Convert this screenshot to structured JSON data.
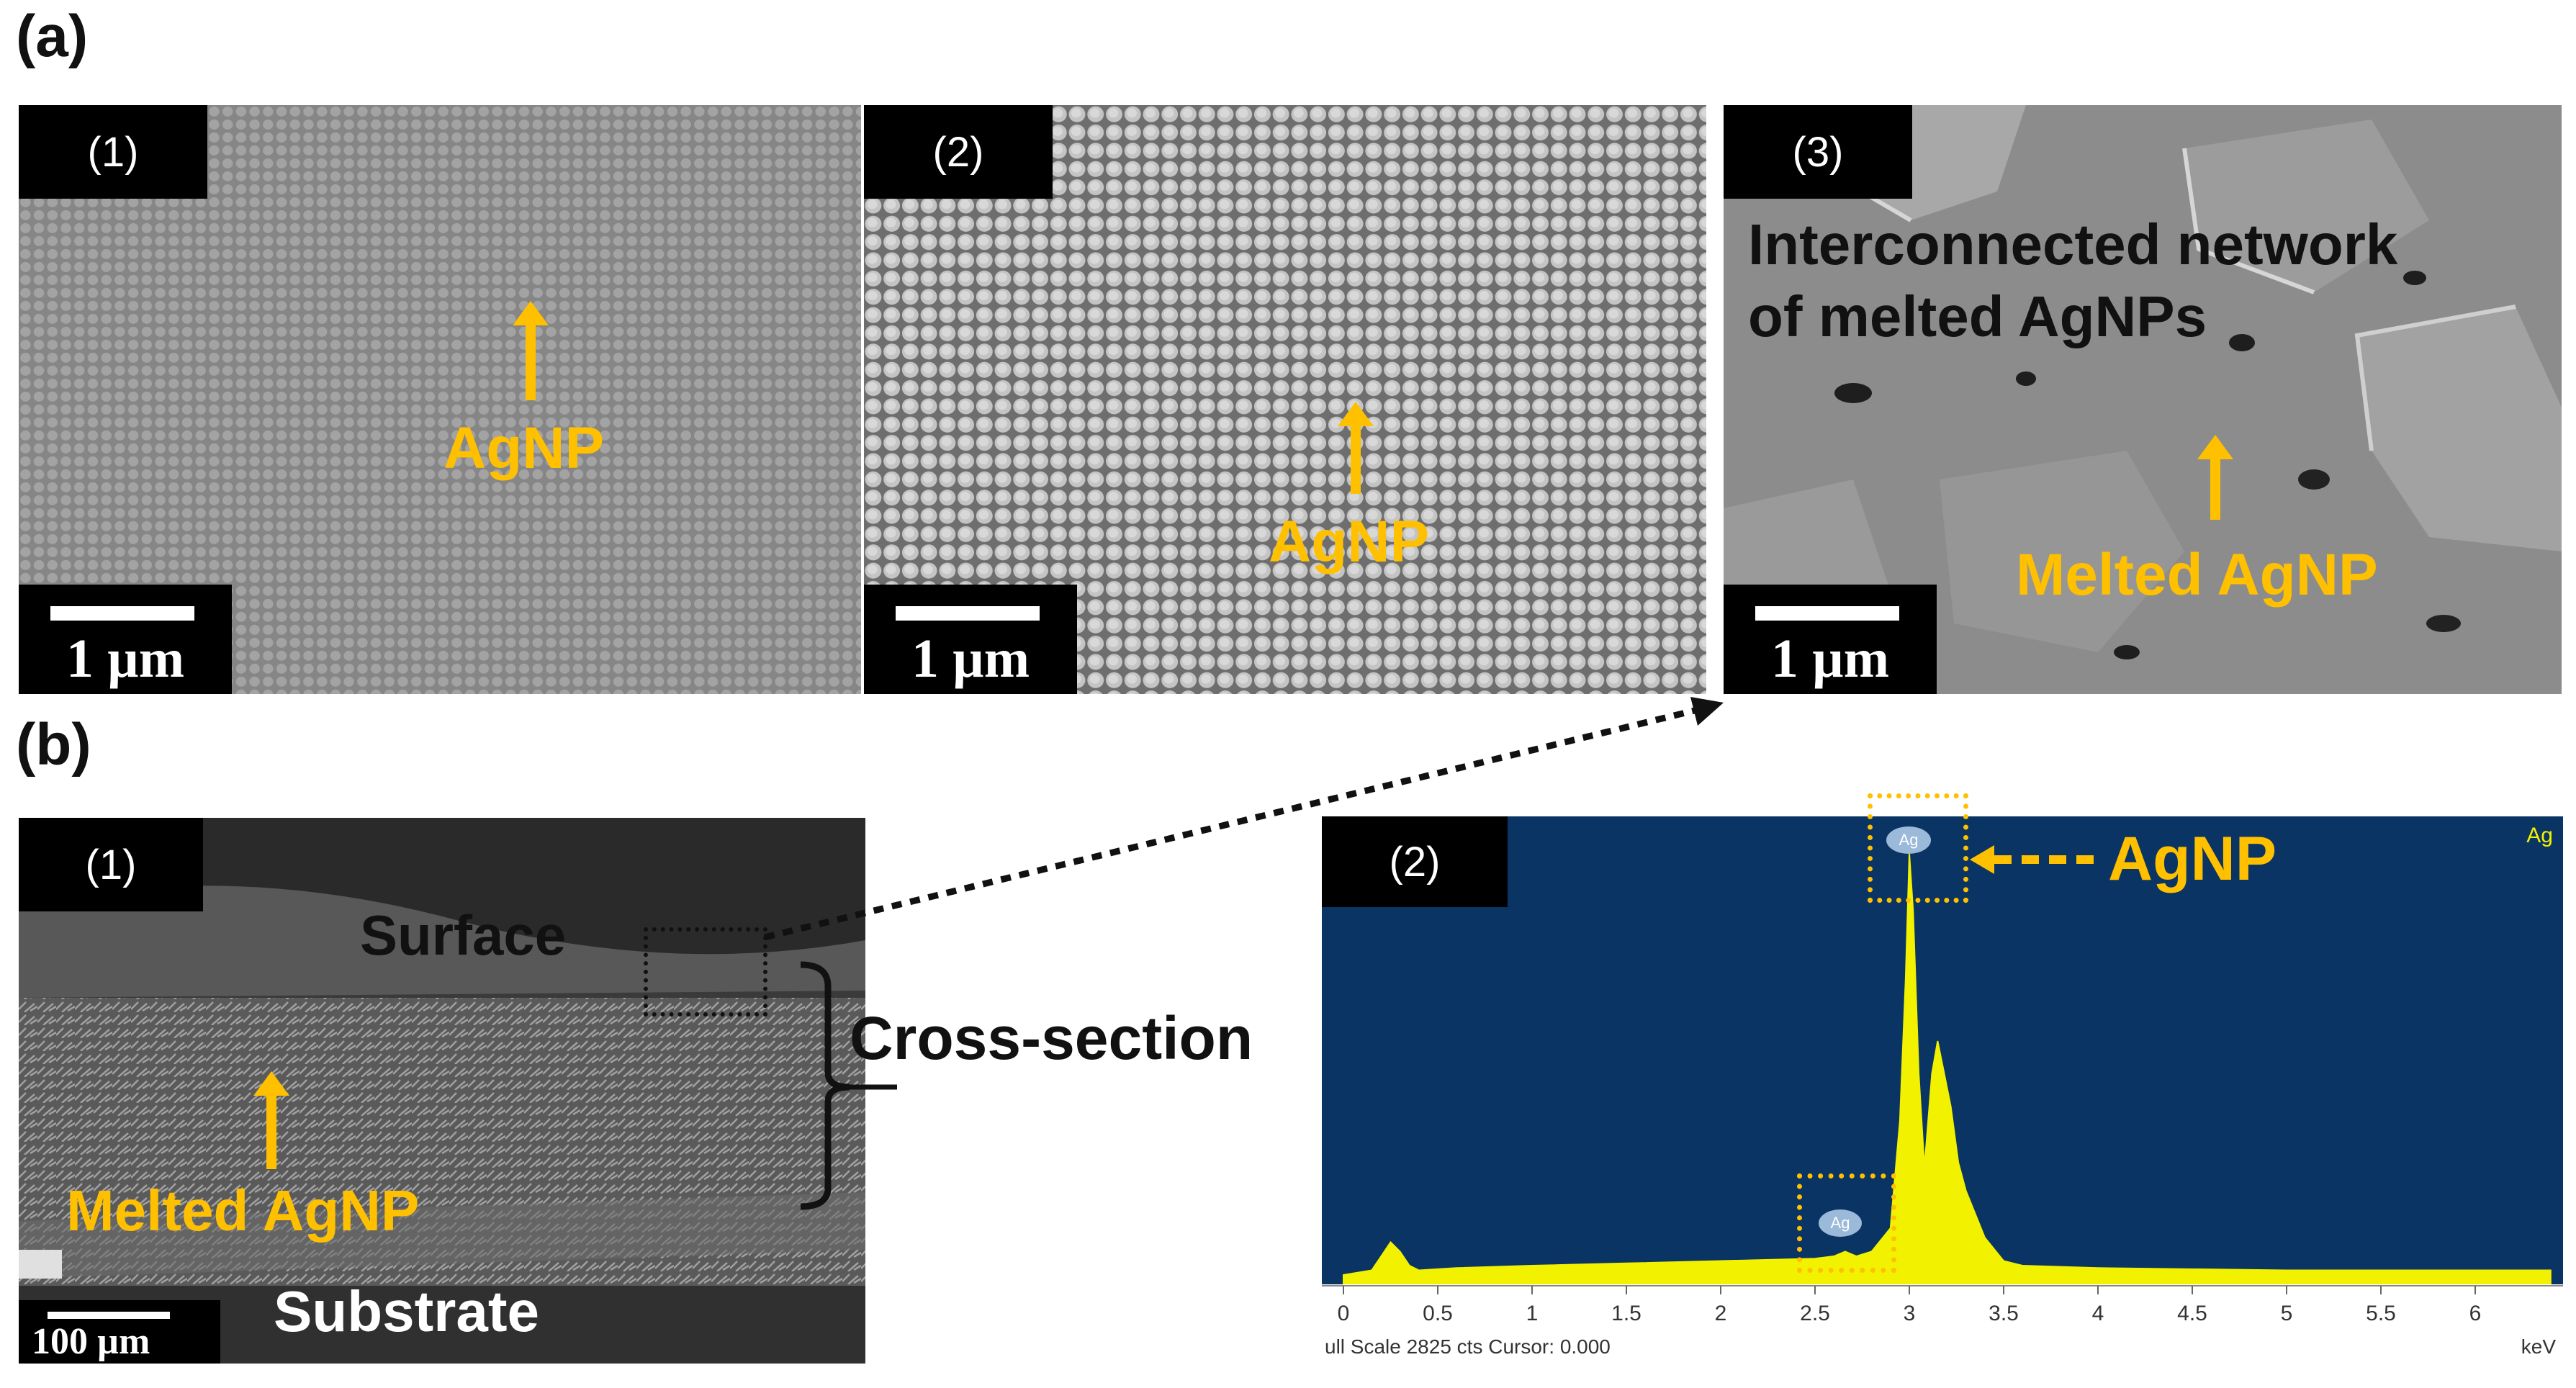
{
  "figure": {
    "label_a": "(a)",
    "label_b": "(b)"
  },
  "panel_a1": {
    "tag": "(1)",
    "scale": "1 µm",
    "annotation": "AgNP"
  },
  "panel_a2": {
    "tag": "(2)",
    "scale": "1 µm",
    "annotation": "AgNP"
  },
  "panel_a3": {
    "tag": "(3)",
    "scale": "1 µm",
    "title_line1": "Interconnected network",
    "title_line2": "of melted AgNPs",
    "annotation": "Melted AgNP"
  },
  "panel_b1": {
    "tag": "(1)",
    "scale": "100 µm",
    "surface": "Surface",
    "cross_section": "Cross-section",
    "annotation": "Melted AgNP",
    "substrate": "Substrate"
  },
  "panel_b2": {
    "tag": "(2)",
    "corner_label": "Ag",
    "peak_label": "Ag",
    "annotation": "AgNP",
    "footer": "ull Scale 2825 cts Cursor: 0.000",
    "unit": "keV",
    "colors": {
      "plot_bg": "#0a3463",
      "spectrum": "#f2f200",
      "highlight": "#ffc000"
    }
  },
  "chart_data": {
    "type": "area",
    "xlabel": "keV",
    "xlim": [
      -0.1,
      6.5
    ],
    "ticks": [
      "0",
      "0.5",
      "1",
      "1.5",
      "2",
      "2.5",
      "3",
      "3.5",
      "4",
      "4.5",
      "5",
      "5.5",
      "6"
    ],
    "series": [
      {
        "name": "Ag",
        "x": [
          0.0,
          0.15,
          0.2,
          0.25,
          0.3,
          0.35,
          0.4,
          0.6,
          1.0,
          1.5,
          2.0,
          2.5,
          2.6,
          2.66,
          2.72,
          2.8,
          2.9,
          2.95,
          2.98,
          3.0,
          3.02,
          3.05,
          3.08,
          3.12,
          3.15,
          3.18,
          3.22,
          3.26,
          3.3,
          3.35,
          3.4,
          3.5,
          3.6,
          4.0,
          5.0,
          6.0,
          6.4
        ],
        "y": [
          0.02,
          0.03,
          0.06,
          0.09,
          0.07,
          0.04,
          0.03,
          0.035,
          0.04,
          0.045,
          0.05,
          0.055,
          0.06,
          0.07,
          0.06,
          0.07,
          0.12,
          0.35,
          0.65,
          0.92,
          0.8,
          0.45,
          0.25,
          0.45,
          0.52,
          0.46,
          0.38,
          0.26,
          0.2,
          0.15,
          0.1,
          0.05,
          0.04,
          0.035,
          0.03,
          0.03,
          0.03
        ]
      }
    ]
  }
}
